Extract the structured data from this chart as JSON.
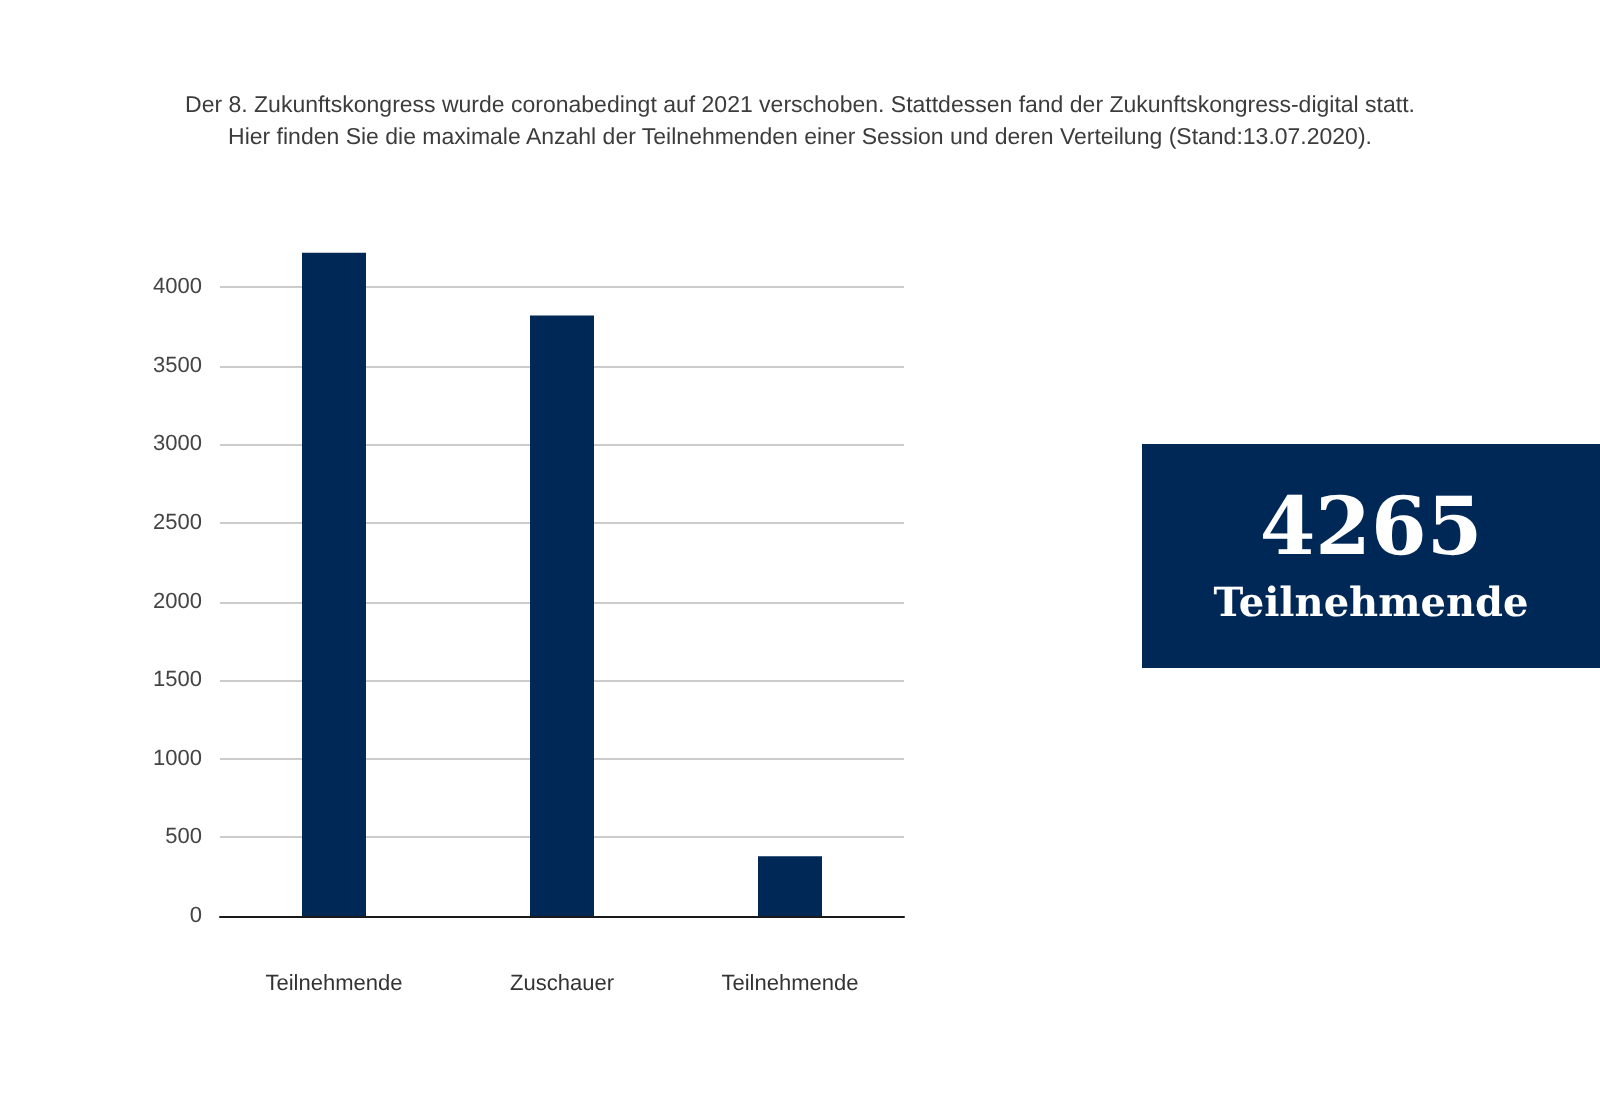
{
  "chart_data": [
    {
      "type": "bar",
      "title": "Der 8. Zukunftskongress wurde coronabedingt auf 2021 verschoben. Stattdessen fand der Zukunftskongress-digital statt.",
      "subtitle": "Hier finden Sie die maximale Anzahl der Teilnehmenden einer Session und deren Verteilung (Stand:13.07.2020).",
      "categories": [
        "Teilnehmende",
        "Zuschauer",
        "Teilnehmende"
      ],
      "values": [
        4220,
        3820,
        380
      ],
      "color": "#002856",
      "ylim": [
        0,
        4250
      ],
      "yticks": [
        0,
        500,
        1000,
        1500,
        2000,
        2500,
        3000,
        3500,
        4000
      ],
      "grid": "y"
    },
    {
      "type": "other",
      "annotations": [
        "4265",
        "Teilnehmende"
      ]
    }
  ]
}
